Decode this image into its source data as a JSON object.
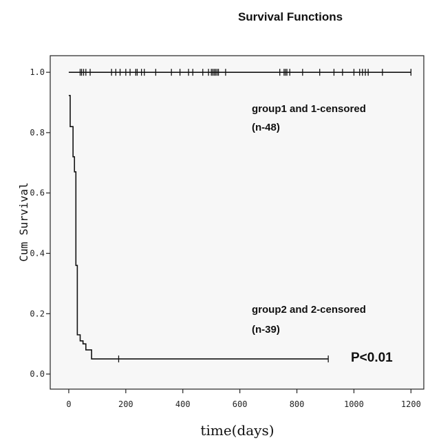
{
  "chart_data": {
    "type": "line",
    "title": "Survival Functions",
    "xlabel": "time(days)",
    "ylabel": "Cum Survival",
    "xlim": [
      -65,
      1245
    ],
    "ylim": [
      -0.05,
      1.055
    ],
    "x_ticks": [
      0,
      200,
      400,
      600,
      800,
      1000,
      1200
    ],
    "y_ticks": [
      0.0,
      0.2,
      0.4,
      0.6,
      0.8,
      1.0
    ],
    "y_tick_labels": [
      "0.0",
      "0.2",
      "0.4",
      "0.6",
      "0.8",
      "1.0"
    ],
    "grid": false,
    "series": [
      {
        "label": "group1",
        "step": [
          [
            0,
            1.0
          ],
          [
            1200,
            1.0
          ]
        ],
        "censored": [
          40,
          45,
          52,
          60,
          75,
          150,
          165,
          180,
          200,
          215,
          235,
          240,
          255,
          265,
          305,
          360,
          390,
          420,
          435,
          470,
          490,
          500,
          505,
          510,
          515,
          520,
          525,
          550,
          740,
          755,
          760,
          765,
          775,
          820,
          880,
          930,
          960,
          1000,
          1020,
          1030,
          1040,
          1050,
          1100,
          1200
        ]
      },
      {
        "label": "group2",
        "step": [
          [
            0,
            0.923
          ],
          [
            5,
            0.82
          ],
          [
            15,
            0.72
          ],
          [
            20,
            0.67
          ],
          [
            25,
            0.36
          ],
          [
            30,
            0.13
          ],
          [
            40,
            0.11
          ],
          [
            50,
            0.1
          ],
          [
            60,
            0.08
          ],
          [
            80,
            0.05
          ],
          [
            910,
            0.05
          ]
        ],
        "censored": [
          175,
          910
        ]
      }
    ],
    "annotations": [
      {
        "line1": "group1 and 1-censored",
        "line2": "(n-48)"
      },
      {
        "line1": "group2 and 2-censored",
        "line2": "(n-39)"
      },
      {
        "text": "P<0.01"
      }
    ]
  }
}
